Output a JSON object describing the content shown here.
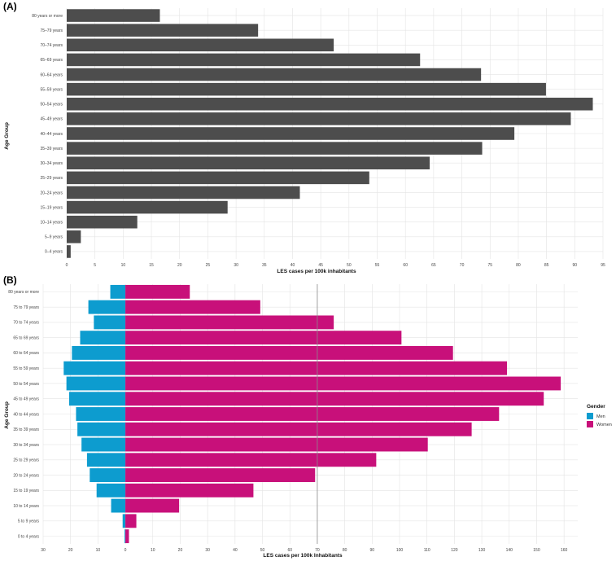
{
  "chart_data": [
    {
      "panel": "(A)",
      "type": "bar",
      "orientation": "horizontal",
      "xlabel": "LES cases per 100k inhabitants",
      "ylabel": "Age Group",
      "xlim": [
        0,
        95
      ],
      "xticks": [
        0,
        5,
        10,
        15,
        20,
        25,
        30,
        35,
        40,
        45,
        50,
        55,
        60,
        65,
        70,
        75,
        80,
        85,
        90,
        95
      ],
      "grid": true,
      "bar_color": "#4d4d4d",
      "categories": [
        "0–4 years",
        "5–9 years",
        "10–14 years",
        "15–19 years",
        "20–24 years",
        "25–29 years",
        "30–34 years",
        "35–39 years",
        "40–44 years",
        "45–49 years",
        "50–54 years",
        "55–59 years",
        "60–64 years",
        "65–69 years",
        "70–74 years",
        "75–79 years",
        "80 years or more"
      ],
      "values": [
        0.7,
        2.5,
        12.5,
        28.5,
        41.3,
        53.6,
        64.3,
        73.6,
        79.3,
        89.3,
        93.2,
        84.9,
        73.4,
        62.6,
        47.3,
        33.9,
        16.5
      ]
    },
    {
      "panel": "(B)",
      "type": "bar",
      "orientation": "horizontal",
      "subtype": "population-pyramid",
      "xlabel": "LES cases per 100k Inhabitants",
      "ylabel": "Age Group",
      "xlim": [
        -30,
        165
      ],
      "xticks": [
        -30,
        -20,
        -10,
        0,
        10,
        20,
        30,
        40,
        50,
        60,
        70,
        80,
        90,
        100,
        110,
        120,
        130,
        140,
        150,
        160
      ],
      "xtick_labels": [
        "30",
        "20",
        "10",
        "0",
        "10",
        "20",
        "30",
        "40",
        "50",
        "60",
        "70",
        "80",
        "90",
        "100",
        "110",
        "120",
        "130",
        "140",
        "150",
        "160"
      ],
      "reference_line_x": 70,
      "grid": true,
      "legend": {
        "title": "Gender",
        "placement": "right"
      },
      "categories": [
        "0 to 4 years",
        "5 to 9 years",
        "10 to 14 years",
        "15 to 19 years",
        "20 to 24 years",
        "25 to 29 years",
        "30 to 34 years",
        "35 to 39 years",
        "40 to 44 years",
        "45 to 49 years",
        "50 to 54 years",
        "55 to 59 years",
        "60 to 64 years",
        "65 to 69 years",
        "70 to 74 years",
        "75 to 79 years",
        "80 years or more"
      ],
      "series": [
        {
          "name": "Men",
          "color": "#0d9ccf",
          "values": [
            -0.3,
            -1.0,
            -5.2,
            -10.5,
            -13.0,
            -14.0,
            -16.0,
            -17.5,
            -18.0,
            -20.5,
            -21.5,
            -22.5,
            -19.5,
            -16.5,
            -11.5,
            -13.5,
            -5.5
          ]
        },
        {
          "name": "Women",
          "color": "#c8107a",
          "values": [
            1.3,
            4.0,
            19.6,
            46.7,
            69.2,
            91.5,
            110.3,
            126.3,
            136.3,
            152.6,
            158.8,
            139.2,
            119.5,
            100.7,
            76.0,
            49.2,
            23.5
          ]
        }
      ]
    }
  ]
}
